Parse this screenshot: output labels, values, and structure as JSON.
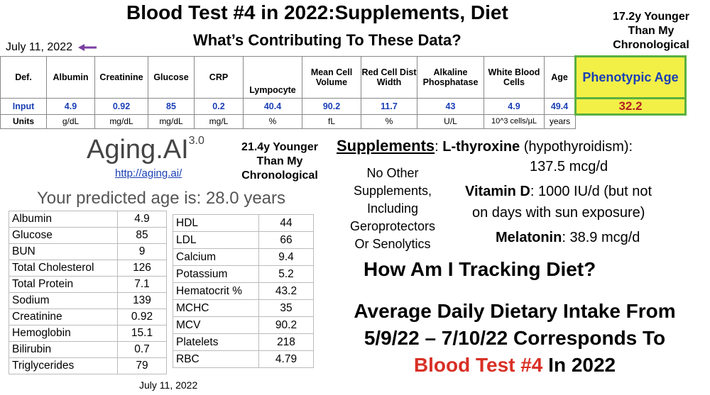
{
  "header": {
    "title": "Blood Test #4 in 2022:Supplements, Diet",
    "subtitle": "What’s Contributing To These Data?",
    "younger_top": [
      "17.2y Younger",
      "Than My",
      "Chronological"
    ],
    "date": "July 11, 2022"
  },
  "top_table": {
    "headers": [
      "Def.",
      "Albumin",
      "Creatinine",
      "Glucose",
      "CRP",
      "Lympocyte",
      "Mean Cell Volume",
      "Red Cell Dist Width",
      "Alkaline Phosphatase",
      "White Blood Cells",
      "Age",
      "Phenotypic Age"
    ],
    "input_label": "Input",
    "inputs": [
      "4.9",
      "0.92",
      "85",
      "0.2",
      "40.4",
      "90.2",
      "11.7",
      "43",
      "4.9",
      "49.4",
      "32.2"
    ],
    "units_label": "Units",
    "units": [
      "g/dL",
      "mg/dL",
      "mg/dL",
      "mg/L",
      "%",
      "fL",
      "%",
      "U/L",
      "10^3 cells/µL",
      "years"
    ]
  },
  "aging_ai": {
    "brand": "Aging.AI",
    "version": "3.0",
    "link": "http://aging.ai/",
    "younger": [
      "21.4y Younger",
      "Than My",
      "Chronological"
    ],
    "prediction": "Your predicted age is: 28.0 years",
    "left_rows": [
      [
        "Albumin",
        "4.9"
      ],
      [
        "Glucose",
        "85"
      ],
      [
        "BUN",
        "9"
      ],
      [
        "Total Cholesterol",
        "126"
      ],
      [
        "Total Protein",
        "7.1"
      ],
      [
        "Sodium",
        "139"
      ],
      [
        "Creatinine",
        "0.92"
      ],
      [
        "Hemoglobin",
        "15.1"
      ],
      [
        "Bilirubin",
        "0.7"
      ],
      [
        "Triglycerides",
        "79"
      ]
    ],
    "right_rows": [
      [
        "HDL",
        "44"
      ],
      [
        "LDL",
        "66"
      ],
      [
        "Calcium",
        "9.4"
      ],
      [
        "Potassium",
        "5.2"
      ],
      [
        "Hematocrit %",
        "43.2"
      ],
      [
        "MCHC",
        "35"
      ],
      [
        "MCV",
        "90.2"
      ],
      [
        "Platelets",
        "218"
      ],
      [
        "RBC",
        "4.79"
      ]
    ],
    "date": "July 11, 2022"
  },
  "supplements": {
    "heading": "Supplements",
    "colon": ": ",
    "thyroxine_name": "L-thyroxine",
    "thyroxine_note": " (hypothyroidism):",
    "thyroxine_dose": "137.5 mcg/d",
    "vitd_name": "Vitamin D",
    "vitd_text": ": 1000 IU/d (but not",
    "vitd_text2": "on days with sun exposure)",
    "melatonin_name": "Melatonin",
    "melatonin_text": ": 38.9 mcg/d",
    "no_other": [
      "No Other",
      "Supplements,",
      "Including",
      "Geroprotectors",
      "Or Senolytics"
    ]
  },
  "diet": {
    "question": "How Am I Tracking Diet?",
    "line1": "Average Daily Dietary Intake From",
    "line2": "5/9/22 – 7/10/22 Corresponds To",
    "line3_red": "Blood Test #4",
    "line3_rest": " In 2022"
  },
  "colors": {
    "blue": "#1a3fb5",
    "red": "#d93025",
    "yellow": "#f2f047",
    "green_border": "#5ab040",
    "arrow": "#7b3fa0"
  },
  "icons": {
    "date_arrow": "left-arrow-icon"
  }
}
